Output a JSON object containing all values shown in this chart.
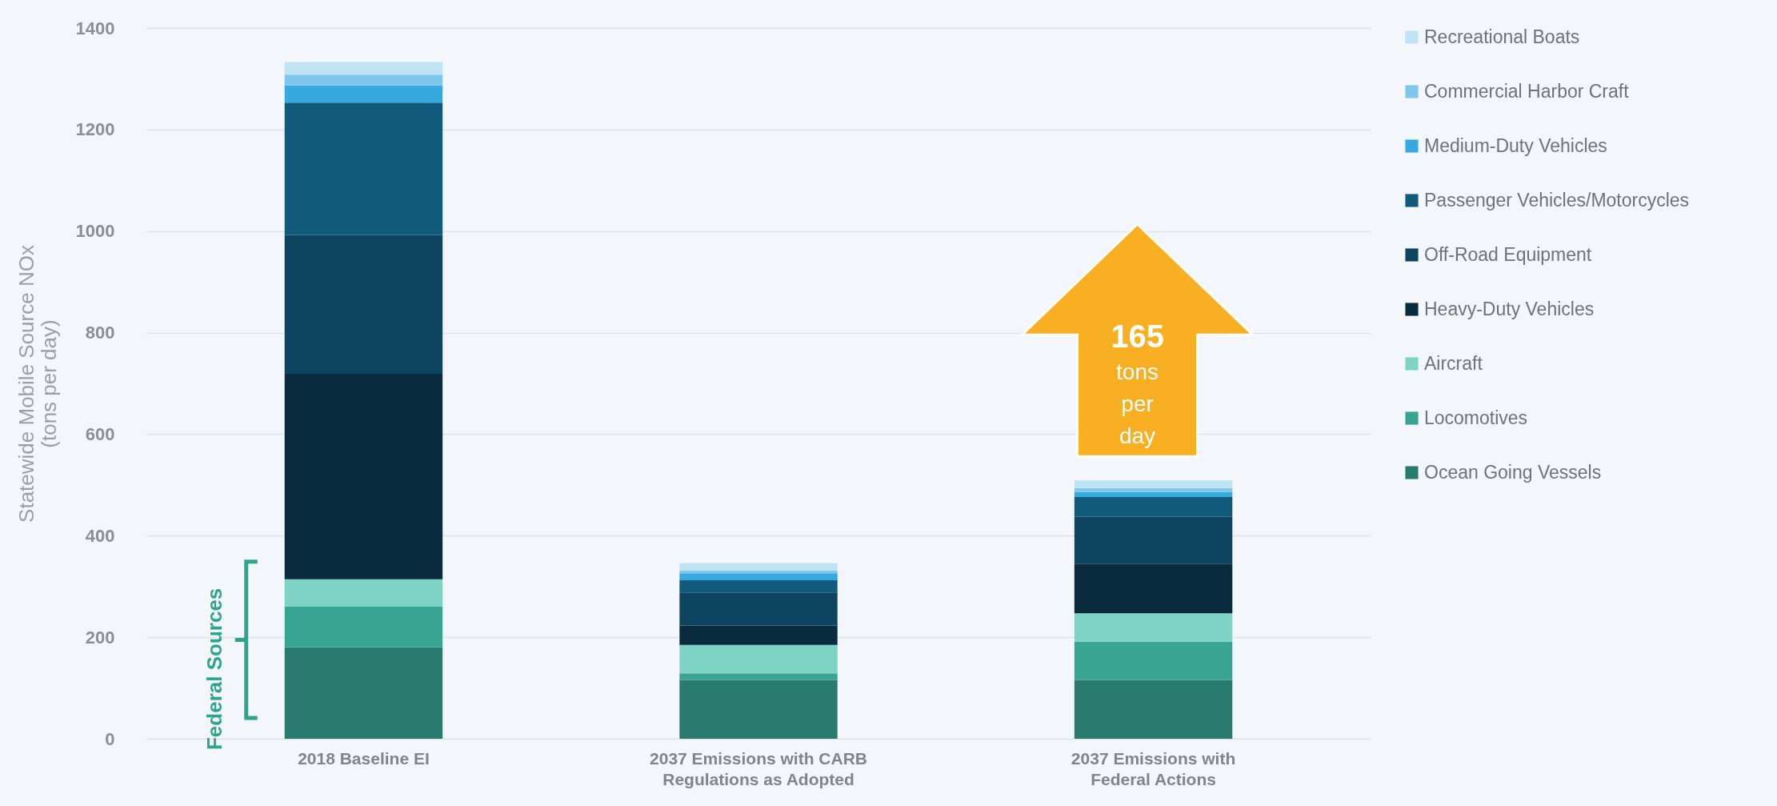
{
  "chart_data": {
    "type": "bar",
    "stacked": true,
    "ylabel": "Statewide Mobile Source NOx\n(tons per day)",
    "categories": [
      "2018 Baseline EI",
      "2037 Emissions with CARB Regulations as Adopted",
      "2037 Emissions with Federal Actions"
    ],
    "series": [
      {
        "name": "Ocean Going Vessels",
        "color": "#2a7b6f",
        "values": [
          180,
          116,
          116
        ]
      },
      {
        "name": "Locomotives",
        "color": "#38a594",
        "values": [
          81,
          13,
          75
        ]
      },
      {
        "name": "Aircraft",
        "color": "#7dd4c4",
        "values": [
          53,
          56,
          56
        ]
      },
      {
        "name": "Heavy-Duty Vehicles",
        "color": "#0a2b3d",
        "values": [
          405,
          38,
          98
        ]
      },
      {
        "name": "Off-Road Equipment",
        "color": "#0d4560",
        "values": [
          273,
          65,
          92
        ]
      },
      {
        "name": "Passenger Vehicles/Motorcycles",
        "color": "#125a7c",
        "values": [
          261,
          24,
          39
        ]
      },
      {
        "name": "Medium-Duty Vehicles",
        "color": "#36a9e1",
        "values": [
          34,
          14,
          10
        ]
      },
      {
        "name": "Commercial Harbor Craft",
        "color": "#7fc6ec",
        "values": [
          21,
          5,
          8
        ]
      },
      {
        "name": "Recreational Boats",
        "color": "#bfe3f5",
        "values": [
          25,
          15,
          15
        ]
      }
    ],
    "ylim": [
      0,
      1400
    ],
    "yticks": [
      0,
      200,
      400,
      600,
      800,
      1000,
      1200,
      1400
    ],
    "grid": "y",
    "legend": "right",
    "annotations": [
      "165 tons per day",
      "Federal Sources"
    ]
  }
}
